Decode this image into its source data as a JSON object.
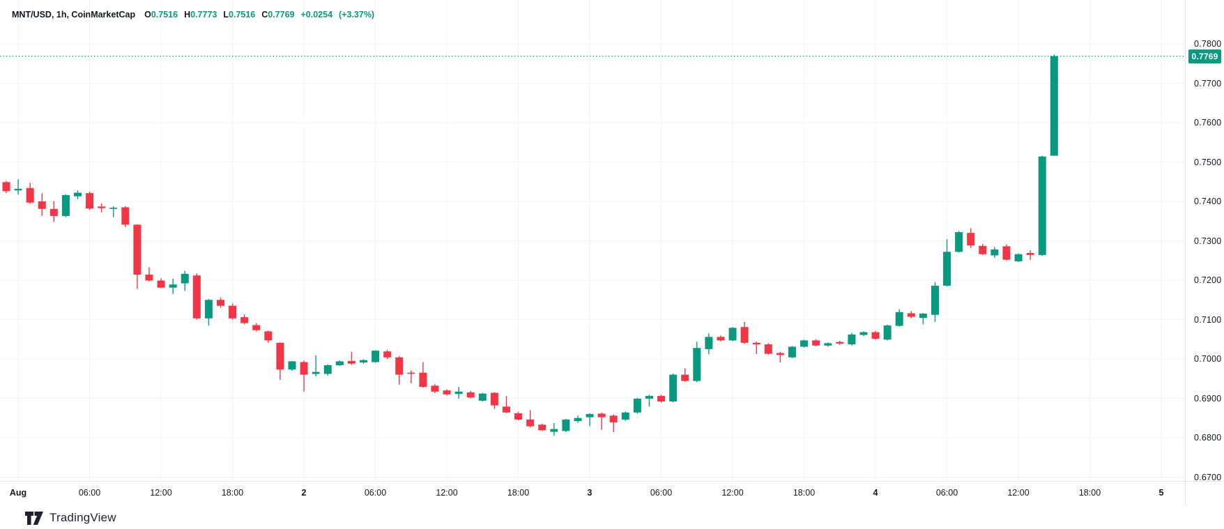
{
  "header": {
    "symbol": "MNT/USD, 1h, CoinMarketCap",
    "o_label": "O",
    "o_value": "0.7516",
    "h_label": "H",
    "h_value": "0.7773",
    "l_label": "L",
    "l_value": "0.7516",
    "c_label": "C",
    "c_value": "0.7769",
    "change_abs": "+0.0254",
    "change_pct": "(+3.37%)"
  },
  "colors": {
    "up": "#089981",
    "down": "#f23645",
    "grid": "#f0f3fa",
    "axis_border": "#e0e3eb",
    "text": "#131722",
    "badge_bg": "#089981",
    "badge_text": "#ffffff",
    "price_line": "#089981"
  },
  "price_axis": {
    "ticks": [
      "0.7800",
      "0.7700",
      "0.7600",
      "0.7500",
      "0.7400",
      "0.7300",
      "0.7200",
      "0.7100",
      "0.7000",
      "0.6900",
      "0.6800",
      "0.6700"
    ],
    "current_price_label": "0.7769"
  },
  "time_axis": {
    "ticks": [
      {
        "label": "Aug",
        "emphasis": true
      },
      {
        "label": "06:00",
        "emphasis": false
      },
      {
        "label": "12:00",
        "emphasis": false
      },
      {
        "label": "18:00",
        "emphasis": false
      },
      {
        "label": "2",
        "emphasis": true
      },
      {
        "label": "06:00",
        "emphasis": false
      },
      {
        "label": "12:00",
        "emphasis": false
      },
      {
        "label": "18:00",
        "emphasis": false
      },
      {
        "label": "3",
        "emphasis": true
      },
      {
        "label": "06:00",
        "emphasis": false
      },
      {
        "label": "12:00",
        "emphasis": false
      },
      {
        "label": "18:00",
        "emphasis": false
      },
      {
        "label": "4",
        "emphasis": true
      },
      {
        "label": "06:00",
        "emphasis": false
      },
      {
        "label": "12:00",
        "emphasis": false
      },
      {
        "label": "18:00",
        "emphasis": false
      },
      {
        "label": "5",
        "emphasis": true
      }
    ]
  },
  "footer": {
    "logo_text": "TradingView"
  },
  "chart_data": {
    "type": "candlestick",
    "title": "MNT/USD, 1h, CoinMarketCap",
    "symbol": "MNT/USD",
    "interval": "1h",
    "source": "CoinMarketCap",
    "current_price": 0.7769,
    "last_bar_ohlc": {
      "open": 0.7516,
      "high": 0.7773,
      "low": 0.7516,
      "close": 0.7769,
      "change": 0.0254,
      "change_pct": 3.37
    },
    "ylim": [
      0.669,
      0.791
    ],
    "y_ticks": [
      0.78,
      0.77,
      0.76,
      0.75,
      0.74,
      0.73,
      0.72,
      0.71,
      0.7,
      0.69,
      0.68,
      0.67
    ],
    "x_tick_labels": [
      "Aug",
      "06:00",
      "12:00",
      "18:00",
      "2",
      "06:00",
      "12:00",
      "18:00",
      "3",
      "06:00",
      "12:00",
      "18:00",
      "4",
      "06:00",
      "12:00",
      "18:00",
      "5"
    ],
    "grid": true,
    "legend_position": "top-left",
    "candles": [
      {
        "t": "Jul 31 23:00",
        "o": 0.7449,
        "h": 0.7452,
        "l": 0.7421,
        "c": 0.7426
      },
      {
        "t": "Aug 1 00:00",
        "o": 0.7428,
        "h": 0.7456,
        "l": 0.7417,
        "c": 0.7432
      },
      {
        "t": "Aug 1 01:00",
        "o": 0.7434,
        "h": 0.7447,
        "l": 0.7394,
        "c": 0.7397
      },
      {
        "t": "Aug 1 02:00",
        "o": 0.74,
        "h": 0.7421,
        "l": 0.7363,
        "c": 0.7381
      },
      {
        "t": "Aug 1 03:00",
        "o": 0.7381,
        "h": 0.7401,
        "l": 0.7348,
        "c": 0.7363
      },
      {
        "t": "Aug 1 04:00",
        "o": 0.7363,
        "h": 0.7418,
        "l": 0.736,
        "c": 0.7416
      },
      {
        "t": "Aug 1 05:00",
        "o": 0.7413,
        "h": 0.7428,
        "l": 0.7406,
        "c": 0.7422
      },
      {
        "t": "Aug 1 06:00",
        "o": 0.7421,
        "h": 0.7425,
        "l": 0.7378,
        "c": 0.7382
      },
      {
        "t": "Aug 1 07:00",
        "o": 0.7387,
        "h": 0.7395,
        "l": 0.7372,
        "c": 0.7383
      },
      {
        "t": "Aug 1 08:00",
        "o": 0.7383,
        "h": 0.7388,
        "l": 0.736,
        "c": 0.7384
      },
      {
        "t": "Aug 1 09:00",
        "o": 0.7385,
        "h": 0.7388,
        "l": 0.7335,
        "c": 0.7341
      },
      {
        "t": "Aug 1 10:00",
        "o": 0.7341,
        "h": 0.7342,
        "l": 0.7178,
        "c": 0.7214
      },
      {
        "t": "Aug 1 11:00",
        "o": 0.7214,
        "h": 0.7233,
        "l": 0.7197,
        "c": 0.7199
      },
      {
        "t": "Aug 1 12:00",
        "o": 0.7199,
        "h": 0.7205,
        "l": 0.718,
        "c": 0.7181
      },
      {
        "t": "Aug 1 13:00",
        "o": 0.7181,
        "h": 0.7204,
        "l": 0.7165,
        "c": 0.7189
      },
      {
        "t": "Aug 1 14:00",
        "o": 0.7192,
        "h": 0.7224,
        "l": 0.7173,
        "c": 0.7216
      },
      {
        "t": "Aug 1 15:00",
        "o": 0.7212,
        "h": 0.7217,
        "l": 0.71,
        "c": 0.7103
      },
      {
        "t": "Aug 1 16:00",
        "o": 0.7103,
        "h": 0.7152,
        "l": 0.7085,
        "c": 0.715
      },
      {
        "t": "Aug 1 17:00",
        "o": 0.715,
        "h": 0.7156,
        "l": 0.713,
        "c": 0.7135
      },
      {
        "t": "Aug 1 18:00",
        "o": 0.7135,
        "h": 0.7141,
        "l": 0.71,
        "c": 0.7103
      },
      {
        "t": "Aug 1 19:00",
        "o": 0.7106,
        "h": 0.7113,
        "l": 0.7088,
        "c": 0.7091
      },
      {
        "t": "Aug 1 20:00",
        "o": 0.7086,
        "h": 0.7091,
        "l": 0.707,
        "c": 0.7073
      },
      {
        "t": "Aug 1 21:00",
        "o": 0.707,
        "h": 0.7072,
        "l": 0.7041,
        "c": 0.7047
      },
      {
        "t": "Aug 1 22:00",
        "o": 0.7041,
        "h": 0.7042,
        "l": 0.6947,
        "c": 0.6973
      },
      {
        "t": "Aug 1 23:00",
        "o": 0.6973,
        "h": 0.6995,
        "l": 0.697,
        "c": 0.6994
      },
      {
        "t": "Aug 2 00:00",
        "o": 0.6992,
        "h": 0.6996,
        "l": 0.6917,
        "c": 0.696
      },
      {
        "t": "Aug 2 01:00",
        "o": 0.6962,
        "h": 0.7009,
        "l": 0.6956,
        "c": 0.6967
      },
      {
        "t": "Aug 2 02:00",
        "o": 0.6962,
        "h": 0.6986,
        "l": 0.6958,
        "c": 0.6984
      },
      {
        "t": "Aug 2 03:00",
        "o": 0.6984,
        "h": 0.6996,
        "l": 0.6982,
        "c": 0.6994
      },
      {
        "t": "Aug 2 04:00",
        "o": 0.6995,
        "h": 0.7018,
        "l": 0.6985,
        "c": 0.6988
      },
      {
        "t": "Aug 2 05:00",
        "o": 0.6991,
        "h": 0.6999,
        "l": 0.6988,
        "c": 0.6997
      },
      {
        "t": "Aug 2 06:00",
        "o": 0.6992,
        "h": 0.7022,
        "l": 0.699,
        "c": 0.7021
      },
      {
        "t": "Aug 2 07:00",
        "o": 0.7019,
        "h": 0.7023,
        "l": 0.7,
        "c": 0.7004
      },
      {
        "t": "Aug 2 08:00",
        "o": 0.7004,
        "h": 0.7007,
        "l": 0.6935,
        "c": 0.696
      },
      {
        "t": "Aug 2 09:00",
        "o": 0.6965,
        "h": 0.6971,
        "l": 0.6938,
        "c": 0.6963
      },
      {
        "t": "Aug 2 10:00",
        "o": 0.6965,
        "h": 0.6992,
        "l": 0.6927,
        "c": 0.6929
      },
      {
        "t": "Aug 2 11:00",
        "o": 0.6932,
        "h": 0.6936,
        "l": 0.6913,
        "c": 0.6917
      },
      {
        "t": "Aug 2 12:00",
        "o": 0.692,
        "h": 0.6923,
        "l": 0.6907,
        "c": 0.691
      },
      {
        "t": "Aug 2 13:00",
        "o": 0.6911,
        "h": 0.6929,
        "l": 0.6899,
        "c": 0.6917
      },
      {
        "t": "Aug 2 14:00",
        "o": 0.6915,
        "h": 0.6919,
        "l": 0.69,
        "c": 0.6902
      },
      {
        "t": "Aug 2 15:00",
        "o": 0.6894,
        "h": 0.6914,
        "l": 0.6892,
        "c": 0.6912
      },
      {
        "t": "Aug 2 16:00",
        "o": 0.6914,
        "h": 0.6916,
        "l": 0.6873,
        "c": 0.6882
      },
      {
        "t": "Aug 2 17:00",
        "o": 0.6879,
        "h": 0.6906,
        "l": 0.6862,
        "c": 0.6864
      },
      {
        "t": "Aug 2 18:00",
        "o": 0.6862,
        "h": 0.6866,
        "l": 0.6844,
        "c": 0.6846
      },
      {
        "t": "Aug 2 19:00",
        "o": 0.6846,
        "h": 0.687,
        "l": 0.6826,
        "c": 0.6829
      },
      {
        "t": "Aug 2 20:00",
        "o": 0.6833,
        "h": 0.6836,
        "l": 0.6817,
        "c": 0.6819
      },
      {
        "t": "Aug 2 21:00",
        "o": 0.6815,
        "h": 0.6837,
        "l": 0.6805,
        "c": 0.6822
      },
      {
        "t": "Aug 2 22:00",
        "o": 0.6817,
        "h": 0.6848,
        "l": 0.6814,
        "c": 0.6846
      },
      {
        "t": "Aug 2 23:00",
        "o": 0.6842,
        "h": 0.6856,
        "l": 0.6838,
        "c": 0.685
      },
      {
        "t": "Aug 3 00:00",
        "o": 0.6852,
        "h": 0.6862,
        "l": 0.6829,
        "c": 0.686
      },
      {
        "t": "Aug 3 01:00",
        "o": 0.6861,
        "h": 0.6864,
        "l": 0.682,
        "c": 0.6852
      },
      {
        "t": "Aug 3 02:00",
        "o": 0.6856,
        "h": 0.6859,
        "l": 0.6814,
        "c": 0.6839
      },
      {
        "t": "Aug 3 03:00",
        "o": 0.6846,
        "h": 0.6866,
        "l": 0.6843,
        "c": 0.6864
      },
      {
        "t": "Aug 3 04:00",
        "o": 0.6864,
        "h": 0.6901,
        "l": 0.6861,
        "c": 0.6899
      },
      {
        "t": "Aug 3 05:00",
        "o": 0.6899,
        "h": 0.6909,
        "l": 0.6879,
        "c": 0.6906
      },
      {
        "t": "Aug 3 06:00",
        "o": 0.6906,
        "h": 0.6909,
        "l": 0.6889,
        "c": 0.6892
      },
      {
        "t": "Aug 3 07:00",
        "o": 0.6892,
        "h": 0.6963,
        "l": 0.689,
        "c": 0.696
      },
      {
        "t": "Aug 3 08:00",
        "o": 0.696,
        "h": 0.6976,
        "l": 0.6942,
        "c": 0.6944
      },
      {
        "t": "Aug 3 09:00",
        "o": 0.6944,
        "h": 0.7044,
        "l": 0.6941,
        "c": 0.7028
      },
      {
        "t": "Aug 3 10:00",
        "o": 0.7025,
        "h": 0.7065,
        "l": 0.7012,
        "c": 0.7056
      },
      {
        "t": "Aug 3 11:00",
        "o": 0.7056,
        "h": 0.7059,
        "l": 0.7044,
        "c": 0.7047
      },
      {
        "t": "Aug 3 12:00",
        "o": 0.7047,
        "h": 0.7081,
        "l": 0.7045,
        "c": 0.7079
      },
      {
        "t": "Aug 3 13:00",
        "o": 0.7081,
        "h": 0.7094,
        "l": 0.7038,
        "c": 0.7041
      },
      {
        "t": "Aug 3 14:00",
        "o": 0.7041,
        "h": 0.7044,
        "l": 0.7012,
        "c": 0.7037
      },
      {
        "t": "Aug 3 15:00",
        "o": 0.7037,
        "h": 0.704,
        "l": 0.7011,
        "c": 0.7013
      },
      {
        "t": "Aug 3 16:00",
        "o": 0.7015,
        "h": 0.7018,
        "l": 0.6991,
        "c": 0.701
      },
      {
        "t": "Aug 3 17:00",
        "o": 0.7004,
        "h": 0.7033,
        "l": 0.7002,
        "c": 0.7031
      },
      {
        "t": "Aug 3 18:00",
        "o": 0.7031,
        "h": 0.7049,
        "l": 0.7029,
        "c": 0.7047
      },
      {
        "t": "Aug 3 19:00",
        "o": 0.7047,
        "h": 0.705,
        "l": 0.7032,
        "c": 0.7034
      },
      {
        "t": "Aug 3 20:00",
        "o": 0.7034,
        "h": 0.7042,
        "l": 0.7031,
        "c": 0.704
      },
      {
        "t": "Aug 3 21:00",
        "o": 0.7043,
        "h": 0.7046,
        "l": 0.7036,
        "c": 0.7039
      },
      {
        "t": "Aug 3 22:00",
        "o": 0.7037,
        "h": 0.7066,
        "l": 0.7034,
        "c": 0.7062
      },
      {
        "t": "Aug 3 23:00",
        "o": 0.7061,
        "h": 0.707,
        "l": 0.7058,
        "c": 0.7068
      },
      {
        "t": "Aug 4 00:00",
        "o": 0.7068,
        "h": 0.7071,
        "l": 0.7049,
        "c": 0.7051
      },
      {
        "t": "Aug 4 01:00",
        "o": 0.7049,
        "h": 0.7087,
        "l": 0.7047,
        "c": 0.7085
      },
      {
        "t": "Aug 4 02:00",
        "o": 0.7084,
        "h": 0.7126,
        "l": 0.7082,
        "c": 0.7119
      },
      {
        "t": "Aug 4 03:00",
        "o": 0.7116,
        "h": 0.7121,
        "l": 0.7103,
        "c": 0.7107
      },
      {
        "t": "Aug 4 04:00",
        "o": 0.7104,
        "h": 0.7117,
        "l": 0.7088,
        "c": 0.7115
      },
      {
        "t": "Aug 4 05:00",
        "o": 0.7112,
        "h": 0.7195,
        "l": 0.7094,
        "c": 0.7186
      },
      {
        "t": "Aug 4 06:00",
        "o": 0.7186,
        "h": 0.7304,
        "l": 0.7184,
        "c": 0.7272
      },
      {
        "t": "Aug 4 07:00",
        "o": 0.7272,
        "h": 0.7325,
        "l": 0.727,
        "c": 0.7322
      },
      {
        "t": "Aug 4 08:00",
        "o": 0.732,
        "h": 0.7332,
        "l": 0.7282,
        "c": 0.7288
      },
      {
        "t": "Aug 4 09:00",
        "o": 0.7287,
        "h": 0.7292,
        "l": 0.7264,
        "c": 0.7266
      },
      {
        "t": "Aug 4 10:00",
        "o": 0.7263,
        "h": 0.7284,
        "l": 0.7257,
        "c": 0.7278
      },
      {
        "t": "Aug 4 11:00",
        "o": 0.7286,
        "h": 0.7291,
        "l": 0.725,
        "c": 0.7252
      },
      {
        "t": "Aug 4 12:00",
        "o": 0.7248,
        "h": 0.7268,
        "l": 0.7246,
        "c": 0.7266
      },
      {
        "t": "Aug 4 13:00",
        "o": 0.7269,
        "h": 0.7276,
        "l": 0.7252,
        "c": 0.7264
      },
      {
        "t": "Aug 4 14:00",
        "o": 0.7264,
        "h": 0.7516,
        "l": 0.7262,
        "c": 0.7514
      },
      {
        "t": "Aug 4 15:00",
        "o": 0.7516,
        "h": 0.7773,
        "l": 0.7516,
        "c": 0.7769
      }
    ]
  }
}
